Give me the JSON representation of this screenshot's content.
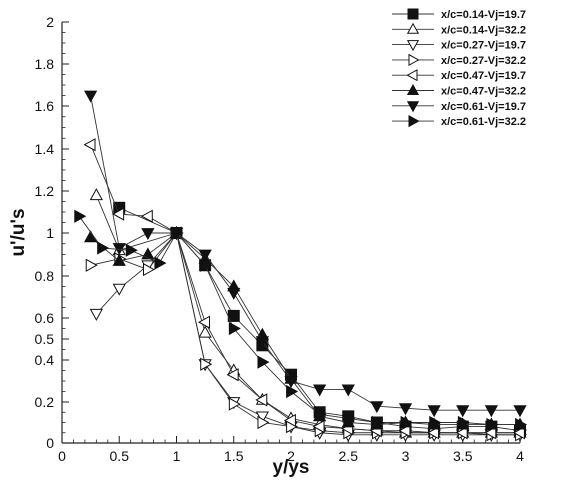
{
  "chart_data": {
    "type": "line",
    "xlabel": "y/ys",
    "ylabel": "u'/u's",
    "xlim": [
      0,
      4
    ],
    "ylim": [
      0,
      2
    ],
    "y_scale": "nonlinear",
    "grid": false,
    "legend_position": "top-right",
    "x_ticks": [
      "0",
      "0.5",
      "1",
      "1.5",
      "2",
      "2.5",
      "3",
      "3.5",
      "4"
    ],
    "y_ticks": [
      "0",
      "0.2",
      "0.4",
      "0.5",
      "0.6",
      "0.8",
      "1",
      "1.2",
      "1.4",
      "1.6",
      "1.8",
      "2"
    ],
    "series": [
      {
        "name": "x/c=0.14-Vj=19.7",
        "marker": "square",
        "fill": "filled",
        "x": [
          0.5,
          1.0,
          1.25,
          1.5,
          1.75,
          2.0,
          2.25,
          2.5,
          2.75,
          3.0,
          3.25,
          3.5,
          3.75,
          4.0
        ],
        "y": [
          1.12,
          1.0,
          0.85,
          0.61,
          0.47,
          0.33,
          0.15,
          0.13,
          0.1,
          0.08,
          0.07,
          0.08,
          0.08,
          0.06
        ]
      },
      {
        "name": "x/c=0.14-Vj=32.2",
        "marker": "triangle-up",
        "fill": "open",
        "x": [
          0.3,
          0.5,
          1.0,
          1.25,
          1.5,
          1.75,
          2.0,
          2.25,
          2.5,
          2.75,
          3.0,
          3.25,
          3.5,
          3.75,
          4.0
        ],
        "y": [
          1.18,
          0.92,
          1.0,
          0.53,
          0.35,
          0.21,
          0.12,
          0.09,
          0.07,
          0.06,
          0.05,
          0.05,
          0.05,
          0.05,
          0.05
        ]
      },
      {
        "name": "x/c=0.27-Vj=19.7",
        "marker": "triangle-down",
        "fill": "open",
        "x": [
          0.3,
          0.5,
          0.75,
          1.0,
          1.25,
          1.5,
          1.75,
          2.0,
          2.25,
          2.5,
          2.75,
          3.0,
          3.25,
          3.5,
          3.75,
          4.0
        ],
        "y": [
          0.62,
          0.74,
          0.85,
          1.0,
          0.38,
          0.2,
          0.13,
          0.08,
          0.05,
          0.04,
          0.04,
          0.04,
          0.04,
          0.04,
          0.04,
          0.04
        ]
      },
      {
        "name": "x/c=0.27-Vj=32.2",
        "marker": "triangle-right",
        "fill": "open",
        "x": [
          0.25,
          0.5,
          0.75,
          1.0,
          1.25,
          1.5,
          1.75,
          2.0,
          2.25,
          2.5,
          2.75,
          3.0,
          3.25,
          3.5,
          3.75,
          4.0
        ],
        "y": [
          0.85,
          0.88,
          0.83,
          1.0,
          0.38,
          0.19,
          0.1,
          0.08,
          0.06,
          0.05,
          0.05,
          0.05,
          0.05,
          0.05,
          0.04,
          0.04
        ]
      },
      {
        "name": "x/c=0.47-Vj=19.7",
        "marker": "triangle-left",
        "fill": "open",
        "x": [
          0.25,
          0.5,
          0.75,
          1.0,
          1.25,
          1.5,
          1.75,
          2.0,
          2.25,
          2.5,
          2.75,
          3.0,
          3.25,
          3.5,
          3.75,
          4.0
        ],
        "y": [
          1.42,
          1.09,
          1.08,
          1.0,
          0.58,
          0.33,
          0.21,
          0.11,
          0.08,
          0.07,
          0.06,
          0.06,
          0.05,
          0.05,
          0.05,
          0.05
        ]
      },
      {
        "name": "x/c=0.47-Vj=32.2",
        "marker": "triangle-up",
        "fill": "filled",
        "x": [
          0.25,
          0.5,
          0.75,
          1.0,
          1.25,
          1.5,
          1.75,
          2.0,
          2.25,
          2.5,
          2.75,
          3.0,
          3.25,
          3.5,
          3.75,
          4.0
        ],
        "y": [
          0.98,
          0.87,
          0.9,
          1.0,
          0.88,
          0.75,
          0.52,
          0.31,
          0.13,
          0.1,
          0.09,
          0.1,
          0.09,
          0.09,
          0.09,
          0.09
        ]
      },
      {
        "name": "x/c=0.61-Vj=19.7",
        "marker": "triangle-down",
        "fill": "filled",
        "x": [
          0.25,
          0.5,
          0.75,
          1.0,
          1.25,
          1.5,
          1.75,
          2.0,
          2.25,
          2.5,
          2.75,
          3.0,
          3.25,
          3.5,
          3.75,
          4.0
        ],
        "y": [
          1.65,
          0.93,
          1.0,
          1.0,
          0.9,
          0.72,
          0.49,
          0.3,
          0.26,
          0.26,
          0.18,
          0.17,
          0.16,
          0.16,
          0.16,
          0.16
        ]
      },
      {
        "name": "x/c=0.61-Vj=32.2",
        "marker": "triangle-right",
        "fill": "filled",
        "x": [
          0.15,
          0.35,
          0.6,
          0.85,
          1.0,
          1.25,
          1.5,
          1.75,
          2.0,
          2.25,
          2.5,
          2.75,
          3.0,
          3.25,
          3.5,
          3.75,
          4.0
        ],
        "y": [
          1.08,
          0.93,
          0.92,
          0.86,
          1.0,
          0.85,
          0.55,
          0.39,
          0.25,
          0.14,
          0.12,
          0.1,
          0.1,
          0.1,
          0.1,
          0.09,
          0.09
        ]
      }
    ]
  }
}
